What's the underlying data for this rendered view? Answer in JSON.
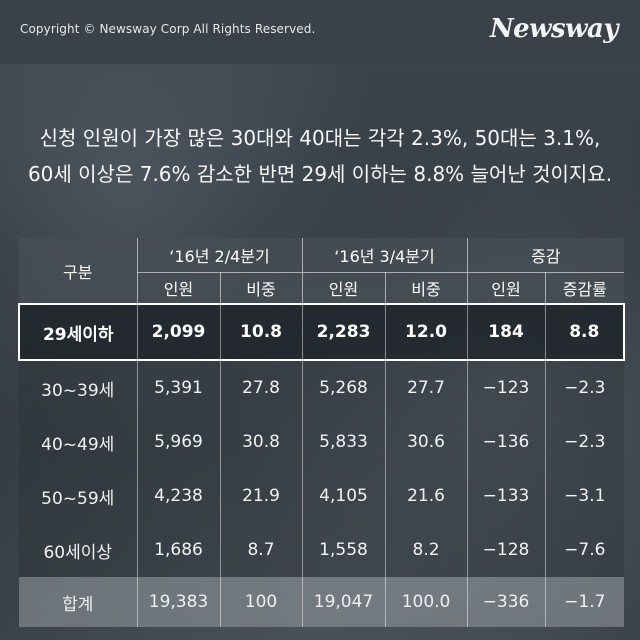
{
  "header": {
    "copyright": "Copyright © Newsway Corp All Rights Reserved.",
    "logo": "Newsway"
  },
  "caption": {
    "line1": "신청 인원이 가장 많은 30대와 40대는 각각 2.3%, 50대는 3.1%,",
    "line2": "60세 이상은 7.6% 감소한 반면 29세 이하는 8.8% 늘어난 것이지요."
  },
  "table": {
    "col_category": "구분",
    "group_q2": "‘16년 2/4분기",
    "group_q3": "‘16년 3/4분기",
    "group_change": "증감",
    "sub_people": "인원",
    "sub_share": "비중",
    "sub_rate": "증감률",
    "rows": [
      [
        "29세이하",
        "2,099",
        "10.8",
        "2,283",
        "12.0",
        "184",
        "8.8"
      ],
      [
        "30~39세",
        "5,391",
        "27.8",
        "5,268",
        "27.7",
        "−123",
        "−2.3"
      ],
      [
        "40~49세",
        "5,969",
        "30.8",
        "5,833",
        "30.6",
        "−136",
        "−2.3"
      ],
      [
        "50~59세",
        "4,238",
        "21.9",
        "4,105",
        "21.6",
        "−133",
        "−3.1"
      ],
      [
        "60세이상",
        "1,686",
        "8.7",
        "1,558",
        "8.2",
        "−128",
        "−7.6"
      ],
      [
        "합계",
        "19,383",
        "100",
        "19,047",
        "100.0",
        "−336",
        "−1.7"
      ]
    ]
  }
}
